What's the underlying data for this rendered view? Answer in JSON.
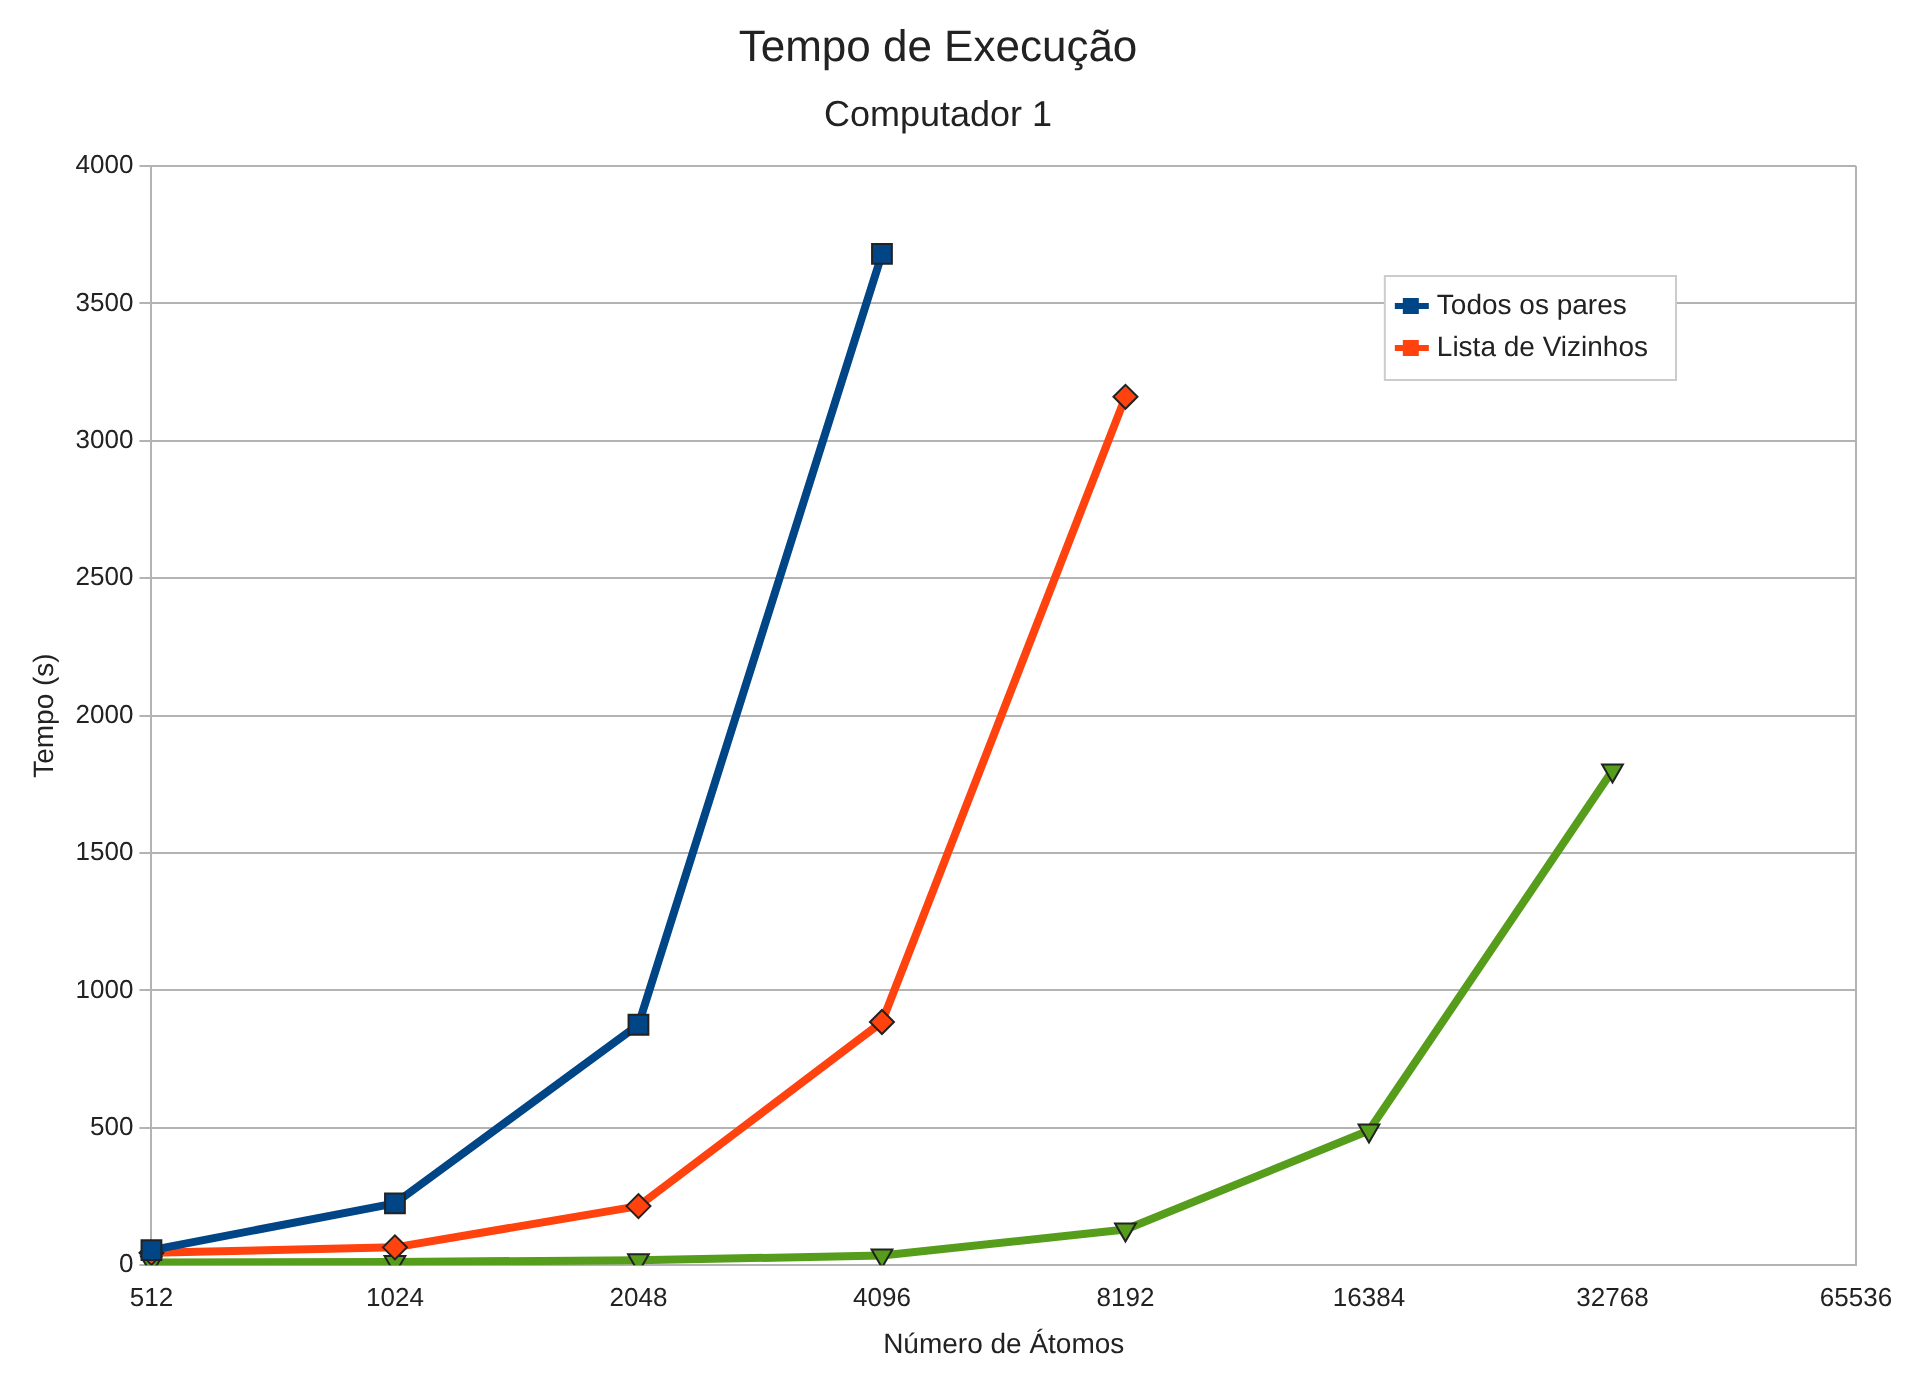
{
  "chart_data": {
    "type": "line",
    "title": "Tempo de Execução",
    "subtitle": "Computador 1",
    "xlabel": "Número de Átomos",
    "ylabel": "Tempo (s)",
    "categories": [
      "512",
      "1024",
      "2048",
      "4096",
      "8192",
      "16384",
      "32768",
      "65536"
    ],
    "series": [
      {
        "name": "Todos os pares",
        "color": "#004586",
        "marker": "square",
        "values": [
          55,
          225,
          875,
          3680,
          null,
          null,
          null,
          null
        ]
      },
      {
        "name": "Lista de Vizinhos",
        "color": "#ff420e",
        "marker": "diamond",
        "values": [
          45,
          65,
          215,
          885,
          3160,
          null,
          null,
          null
        ]
      },
      {
        "color": "#579d1c",
        "marker": "triangle",
        "values": [
          10,
          12,
          18,
          35,
          130,
          490,
          1800,
          null
        ]
      }
    ],
    "ylim": [
      0,
      4000
    ],
    "yticks": [
      0,
      500,
      1000,
      1500,
      2000,
      2500,
      3000,
      3500,
      4000
    ],
    "grid": "y",
    "legend": "top right",
    "line_style": "solid"
  }
}
